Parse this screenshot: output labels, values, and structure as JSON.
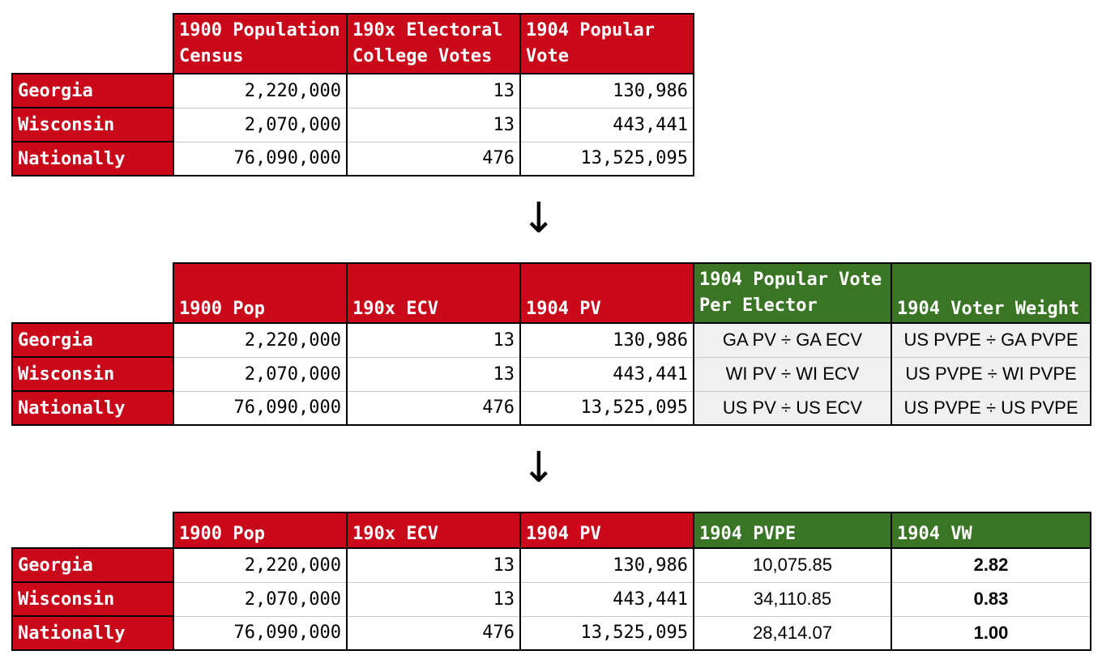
{
  "table1": {
    "headers": [
      "1900 Population\nCensus",
      "190x Electoral\nCollege Votes",
      "1904 Popular\nVote"
    ],
    "header_lines": [
      [
        "1900 Population",
        "Census"
      ],
      [
        "190x Electoral",
        "College Votes"
      ],
      [
        "1904 Popular",
        "Vote"
      ]
    ],
    "rows": [
      {
        "label": "Georgia",
        "pop": "2,220,000",
        "ecv": "13",
        "pv": "130,986"
      },
      {
        "label": "Wisconsin",
        "pop": "2,070,000",
        "ecv": "13",
        "pv": "443,441"
      },
      {
        "label": "Nationally",
        "pop": "76,090,000",
        "ecv": "476",
        "pv": "13,525,095"
      }
    ]
  },
  "arrow_glyph": "↓",
  "table2": {
    "headers": {
      "pop": "1900 Pop",
      "ecv": "190x ECV",
      "pv": "1904 PV",
      "pvpe_line1": "1904 Popular Vote",
      "pvpe_line2": "Per Elector",
      "vw": "1904 Voter Weight"
    },
    "rows": [
      {
        "label": "Georgia",
        "pop": "2,220,000",
        "ecv": "13",
        "pv": "130,986",
        "pvpe": "GA PV ÷ GA ECV",
        "vw": "US PVPE ÷ GA PVPE"
      },
      {
        "label": "Wisconsin",
        "pop": "2,070,000",
        "ecv": "13",
        "pv": "443,441",
        "pvpe": "WI PV ÷ WI ECV",
        "vw": "US PVPE ÷ WI PVPE"
      },
      {
        "label": "Nationally",
        "pop": "76,090,000",
        "ecv": "476",
        "pv": "13,525,095",
        "pvpe": "US PV ÷ US ECV",
        "vw": "US PVPE ÷ US PVPE"
      }
    ]
  },
  "table3": {
    "headers": {
      "pop": "1900 Pop",
      "ecv": "190x ECV",
      "pv": "1904 PV",
      "pvpe": "1904 PVPE",
      "vw": "1904 VW"
    },
    "rows": [
      {
        "label": "Georgia",
        "pop": "2,220,000",
        "ecv": "13",
        "pv": "130,986",
        "pvpe": "10,075.85",
        "vw": "2.82"
      },
      {
        "label": "Wisconsin",
        "pop": "2,070,000",
        "ecv": "13",
        "pv": "443,441",
        "pvpe": "34,110.85",
        "vw": "0.83"
      },
      {
        "label": "Nationally",
        "pop": "76,090,000",
        "ecv": "476",
        "pv": "13,525,095",
        "pvpe": "28,414.07",
        "vw": "1.00"
      }
    ]
  },
  "colors": {
    "header_red": "#c9081a",
    "header_green": "#3a7526",
    "formula_bg": "#f0f0f0"
  }
}
